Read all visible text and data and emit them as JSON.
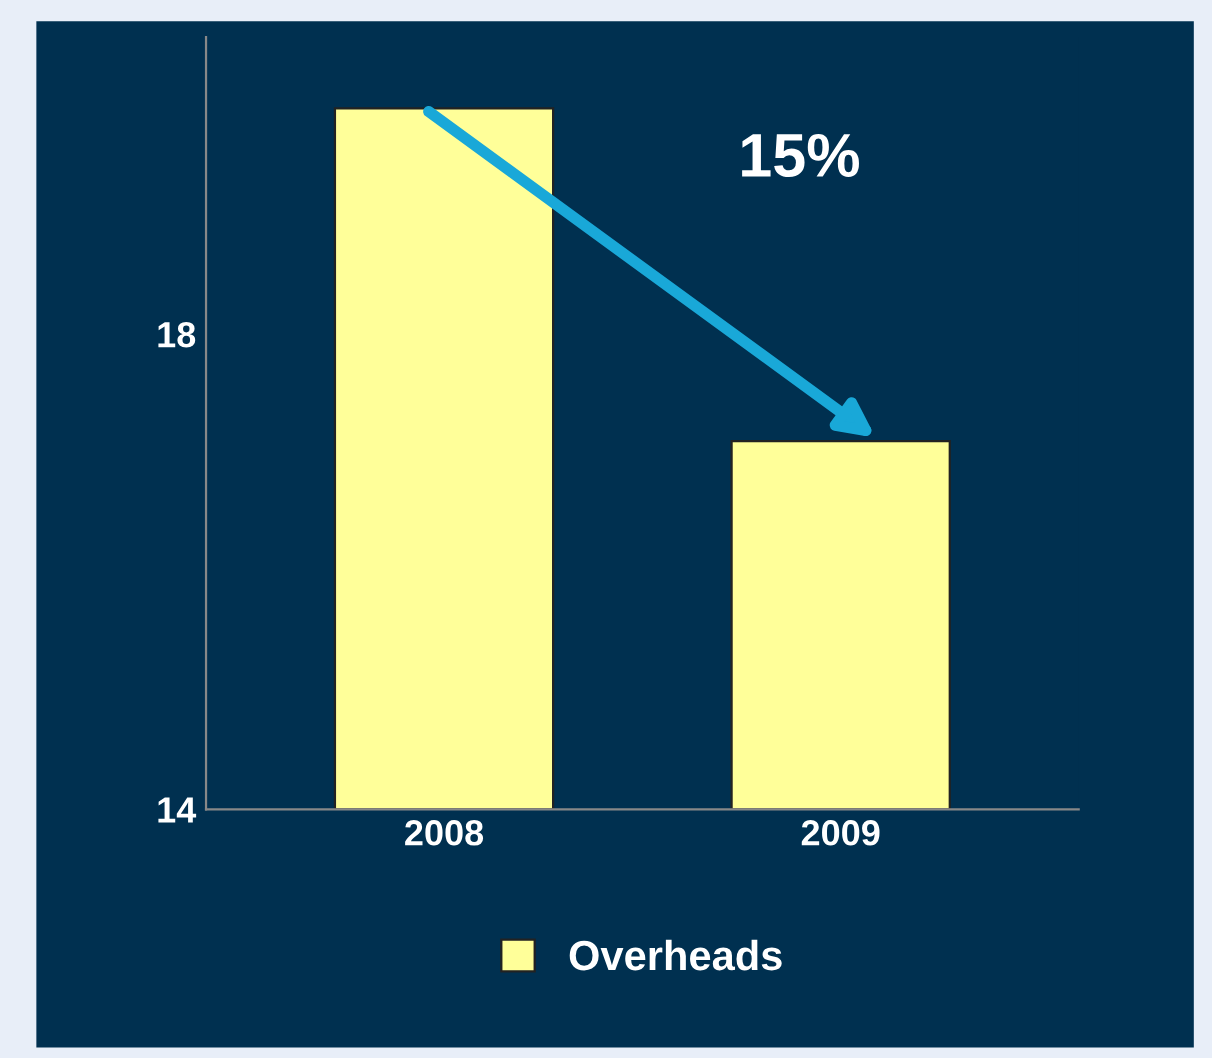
{
  "chart_data": {
    "type": "bar",
    "categories": [
      "2008",
      "2009"
    ],
    "series": [
      {
        "name": "Overheads",
        "color": "#ffff99",
        "values": [
          19.9,
          17.1
        ]
      }
    ],
    "ylim": [
      14,
      20.5
    ],
    "yticks": [
      14,
      18
    ],
    "grid": false,
    "legend": "bottom",
    "annotations": [
      "15%"
    ]
  }
}
